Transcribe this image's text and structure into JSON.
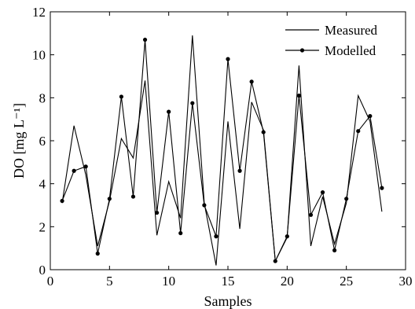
{
  "chart_data": {
    "type": "line",
    "title": "",
    "xlabel": "Samples",
    "ylabel": "DO [mg L⁻¹]",
    "xlim": [
      0,
      30
    ],
    "ylim": [
      0,
      12
    ],
    "xticks": [
      0,
      5,
      10,
      15,
      20,
      25,
      30
    ],
    "yticks": [
      0,
      2,
      4,
      6,
      8,
      10,
      12
    ],
    "grid": false,
    "legend_position": "top-right",
    "series": [
      {
        "name": "Measured",
        "marker": "none",
        "color": "#000000",
        "x": [
          1,
          2,
          3,
          4,
          5,
          6,
          7,
          8,
          9,
          10,
          11,
          12,
          13,
          14,
          15,
          16,
          17,
          18,
          19,
          20,
          21,
          22,
          23,
          24,
          25,
          26,
          27,
          28
        ],
        "values": [
          3.1,
          6.7,
          4.4,
          1.1,
          3.2,
          6.1,
          5.2,
          8.8,
          1.6,
          4.1,
          2.4,
          10.9,
          3.1,
          0.2,
          6.9,
          1.9,
          7.8,
          6.5,
          0.4,
          1.5,
          9.5,
          1.1,
          3.4,
          1.2,
          3.1,
          8.1,
          6.9,
          2.7
        ]
      },
      {
        "name": "Modelled",
        "marker": "dot",
        "color": "#000000",
        "x": [
          1,
          2,
          3,
          4,
          5,
          6,
          7,
          8,
          9,
          10,
          11,
          12,
          13,
          14,
          15,
          16,
          17,
          18,
          19,
          20,
          21,
          22,
          23,
          24,
          25,
          26,
          27,
          28
        ],
        "values": [
          3.2,
          4.6,
          4.8,
          0.75,
          3.3,
          8.05,
          3.4,
          10.7,
          2.65,
          7.35,
          1.7,
          7.75,
          3.0,
          1.55,
          9.8,
          4.6,
          8.75,
          6.4,
          0.4,
          1.55,
          8.1,
          2.55,
          3.6,
          0.9,
          3.3,
          6.45,
          7.15,
          3.8
        ]
      }
    ]
  }
}
